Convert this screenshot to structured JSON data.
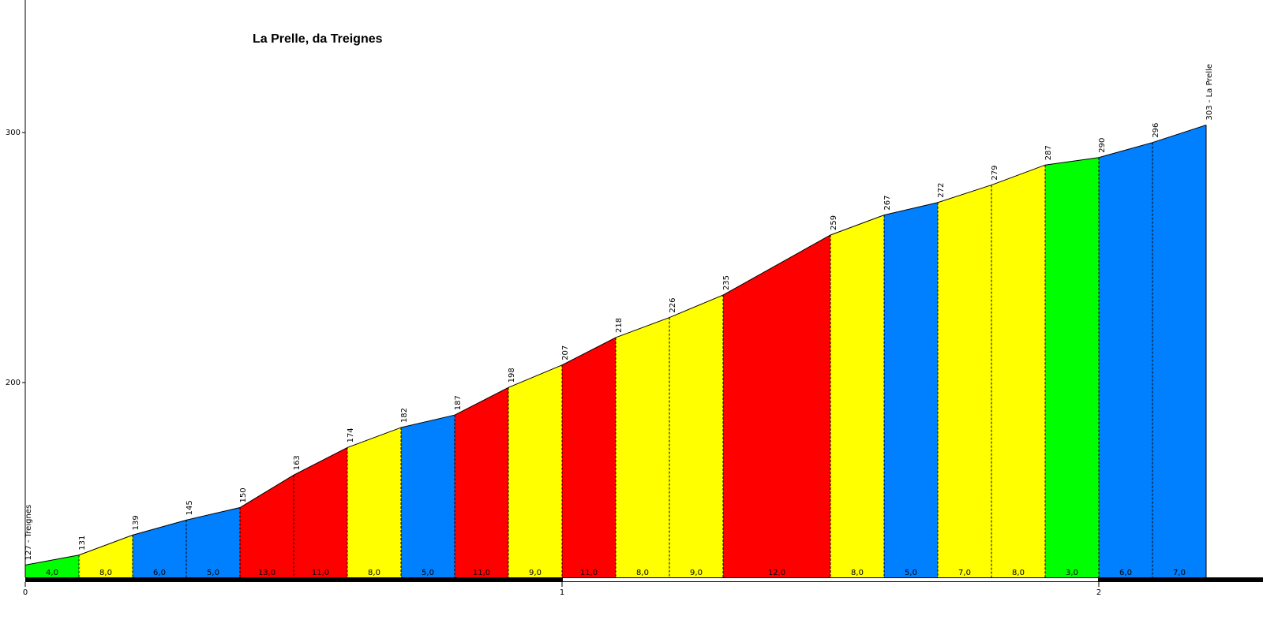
{
  "chart_data": {
    "type": "area",
    "title": "La Prelle, da Treignes",
    "xlabel": "",
    "ylabel": "",
    "x_ticks": [
      "0",
      "1",
      "2"
    ],
    "y_ticks": [
      "200",
      "300"
    ],
    "xlim": [
      0,
      2.35
    ],
    "ylim": [
      120,
      352
    ],
    "start_label": "127 - Treignes",
    "end_label": "303 - La Prelle",
    "points": [
      {
        "km": 0.0,
        "alt": 127
      },
      {
        "km": 0.1,
        "alt": 131
      },
      {
        "km": 0.2,
        "alt": 139
      },
      {
        "km": 0.3,
        "alt": 145
      },
      {
        "km": 0.4,
        "alt": 150
      },
      {
        "km": 0.5,
        "alt": 163
      },
      {
        "km": 0.6,
        "alt": 174
      },
      {
        "km": 0.7,
        "alt": 182
      },
      {
        "km": 0.8,
        "alt": 187
      },
      {
        "km": 0.9,
        "alt": 198
      },
      {
        "km": 1.0,
        "alt": 207
      },
      {
        "km": 1.1,
        "alt": 218
      },
      {
        "km": 1.2,
        "alt": 226
      },
      {
        "km": 1.3,
        "alt": 235
      },
      {
        "km": 1.5,
        "alt": 259
      },
      {
        "km": 1.6,
        "alt": 267
      },
      {
        "km": 1.7,
        "alt": 272
      },
      {
        "km": 1.8,
        "alt": 279
      },
      {
        "km": 1.9,
        "alt": 287
      },
      {
        "km": 2.0,
        "alt": 290
      },
      {
        "km": 2.1,
        "alt": 296
      },
      {
        "km": 2.2,
        "alt": 303
      }
    ],
    "gradients": [
      "4,0",
      "8,0",
      "6,0",
      "5,0",
      "13,0",
      "11,0",
      "8,0",
      "5,0",
      "11,0",
      "9,0",
      "11,0",
      "8,0",
      "9,0",
      "12,0",
      "8,0",
      "5,0",
      "7,0",
      "8,0",
      "3,0",
      "6,0",
      "7,0"
    ],
    "gradient_colors": {
      "green": "#00ff00",
      "yellow": "#ffff00",
      "blue": "#0080ff",
      "red": "#ff0000"
    },
    "segment_colors": [
      "green",
      "yellow",
      "blue",
      "blue",
      "red",
      "red",
      "yellow",
      "blue",
      "red",
      "yellow",
      "red",
      "yellow",
      "yellow",
      "red",
      "yellow",
      "blue",
      "yellow",
      "yellow",
      "green",
      "blue",
      "blue"
    ]
  }
}
